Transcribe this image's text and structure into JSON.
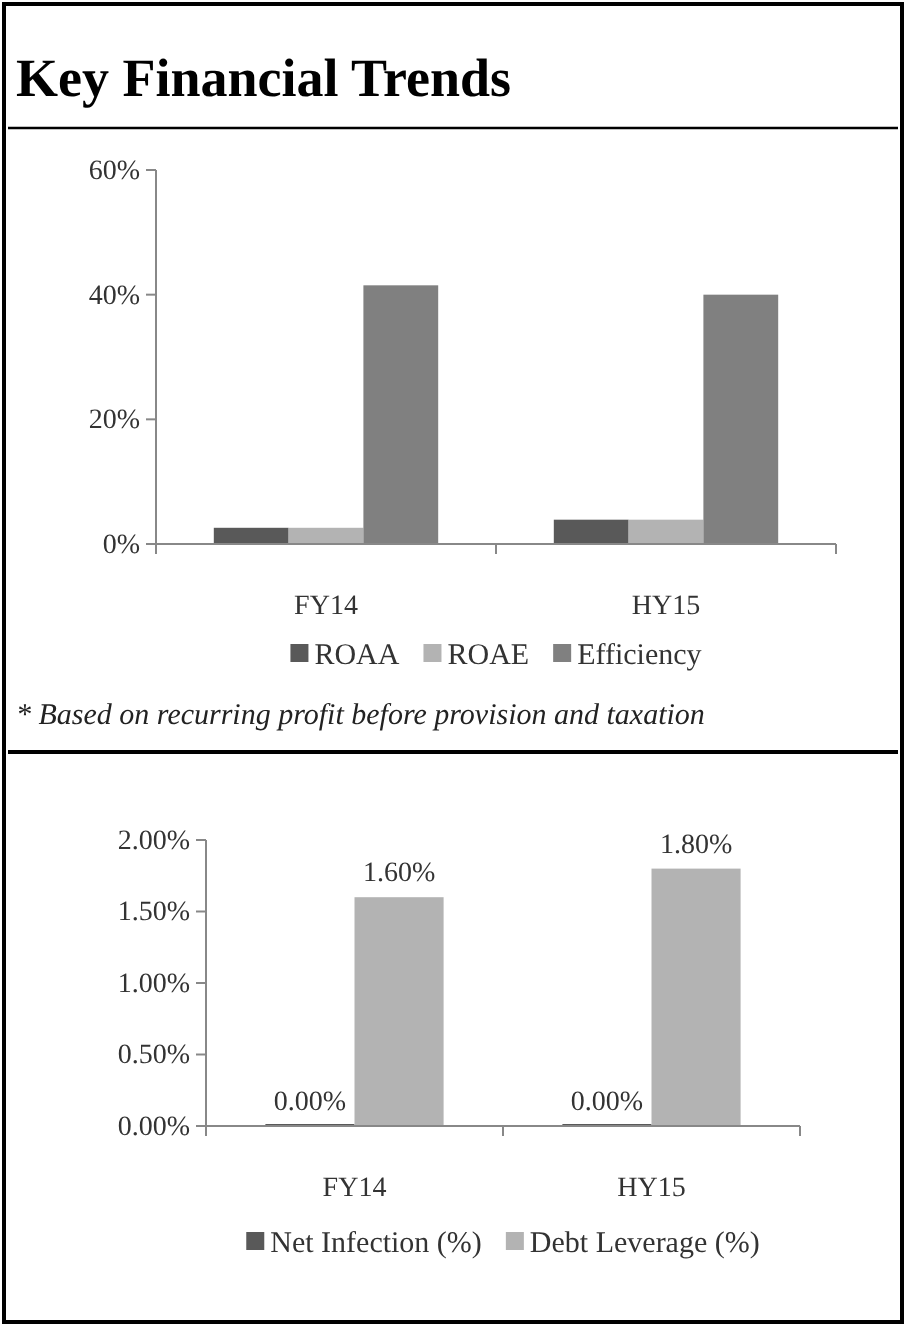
{
  "chart_data": [
    {
      "type": "bar",
      "title": "Key Financial Trends",
      "categories": [
        "FY14",
        "HY15"
      ],
      "series": [
        {
          "name": "ROAA",
          "color": "#595959",
          "values": [
            2.6,
            3.9
          ]
        },
        {
          "name": "ROAE",
          "color": "#b3b3b3",
          "values": [
            2.6,
            3.9
          ]
        },
        {
          "name": "Efficiency",
          "color": "#808080",
          "values": [
            41.5,
            40
          ]
        }
      ],
      "ylim": [
        0,
        60
      ],
      "yticks": [
        {
          "value": 0,
          "label": "0%"
        },
        {
          "value": 20,
          "label": "20%"
        },
        {
          "value": 40,
          "label": "40%"
        },
        {
          "value": 60,
          "label": "60%"
        }
      ],
      "legend": "bottom",
      "grid": false,
      "annotations": [
        "* Based on recurring profit before provision and taxation"
      ]
    },
    {
      "type": "bar",
      "categories": [
        "FY14",
        "HY15"
      ],
      "series": [
        {
          "name": "Net Infection (%)",
          "color": "#595959",
          "values": [
            0,
            0
          ],
          "value_labels": [
            "0.00%",
            "0.00%"
          ]
        },
        {
          "name": "Debt Leverage (%)",
          "color": "#b3b3b3",
          "values": [
            1.6,
            1.8
          ],
          "value_labels": [
            "1.60%",
            "1.80%"
          ]
        }
      ],
      "ylim": [
        0,
        2
      ],
      "yticks": [
        {
          "value": 0,
          "label": "0.00%"
        },
        {
          "value": 0.5,
          "label": "0.50%"
        },
        {
          "value": 1,
          "label": "1.00%"
        },
        {
          "value": 1.5,
          "label": "1.50%"
        },
        {
          "value": 2,
          "label": "2.00%"
        }
      ],
      "legend": "bottom",
      "grid": false
    }
  ]
}
